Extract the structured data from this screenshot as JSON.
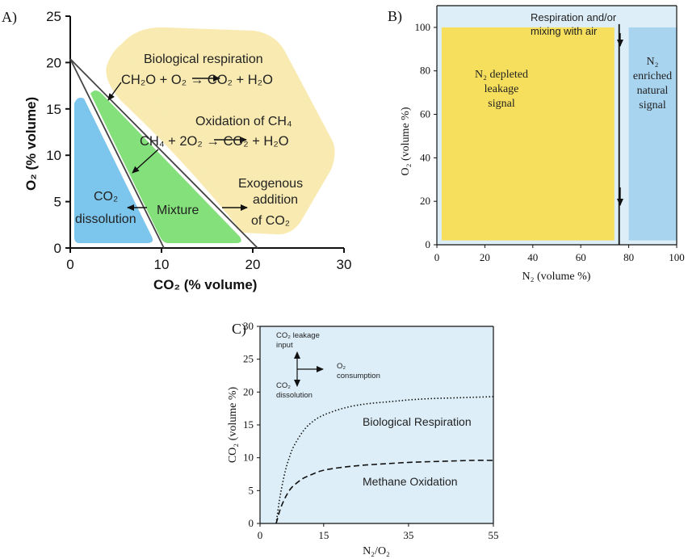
{
  "chart_data": [
    {
      "panel": "A)",
      "type": "ternary-region-diagram",
      "xlabel": "CO₂ (% volume)",
      "ylabel": "O₂ (% volume)",
      "xlim": [
        0,
        30
      ],
      "ylim": [
        0,
        25
      ],
      "xticks": [
        0,
        10,
        20,
        30
      ],
      "yticks": [
        0,
        5,
        10,
        15,
        20,
        25
      ],
      "lines": [
        {
          "from": [
            0,
            20.5
          ],
          "to": [
            20.5,
            0
          ]
        },
        {
          "from": [
            0,
            20.5
          ],
          "to": [
            10.2,
            0
          ]
        }
      ],
      "regions": [
        {
          "id": "respiration",
          "color": "#f8eab0",
          "labels": [
            "Biological respiration",
            "CH₂O + O₂ → CO₂ + H₂O",
            "Oxidation of CH₄",
            "CH₄ + 2O₂ → CO₂ + H₂O"
          ]
        },
        {
          "id": "dissolution",
          "color": "#7cc6ee",
          "labels": [
            "CO₂",
            "dissolution"
          ]
        },
        {
          "id": "mixture",
          "color": "#84e07a",
          "labels": [
            "Mixture"
          ]
        },
        {
          "id": "exogenous",
          "labels": [
            "Exogenous",
            "addition",
            "of CO₂"
          ]
        }
      ]
    },
    {
      "panel": "B)",
      "type": "region-diagram",
      "xlabel": "N₂ (volume %)",
      "ylabel": "O₂ (volume %)",
      "xlim": [
        0,
        100
      ],
      "ylim": [
        0,
        110
      ],
      "xticks": [
        0,
        20,
        40,
        60,
        80,
        100
      ],
      "yticks": [
        0,
        20,
        40,
        60,
        80,
        100
      ],
      "regions": [
        {
          "id": "depleted",
          "x": [
            2,
            74
          ],
          "y": [
            2,
            100
          ],
          "color": "#f5df5c",
          "label": [
            "N₂ depleted",
            "leakage",
            "signal"
          ]
        },
        {
          "id": "enriched",
          "x": [
            80,
            100
          ],
          "y": [
            2,
            100
          ],
          "color": "#a8d4ef",
          "label": [
            "N₂",
            "enriched",
            "natural",
            "signal"
          ]
        }
      ],
      "marker_line": {
        "x": 76,
        "y": [
          0,
          100
        ]
      },
      "annotation": [
        "Respiration and/or",
        "mixing with air"
      ]
    },
    {
      "panel": "C)",
      "type": "line",
      "xlabel": "N₂/O₂",
      "ylabel": "CO₂ (volume %)",
      "xlim": [
        0,
        55
      ],
      "ylim": [
        0,
        30
      ],
      "xticks": [
        0,
        15,
        35,
        55
      ],
      "yticks": [
        0,
        5,
        10,
        15,
        20,
        25,
        30
      ],
      "series": [
        {
          "name": "Biological Respiration",
          "style": "dotted",
          "x": [
            3.8,
            4.5,
            5,
            6,
            7,
            8,
            10,
            12,
            15,
            20,
            25,
            30,
            35,
            40,
            45,
            50,
            55
          ],
          "y": [
            0,
            3.2,
            5.1,
            8.1,
            10.2,
            11.8,
            13.9,
            15.3,
            16.5,
            17.6,
            18.2,
            18.5,
            18.8,
            19.0,
            19.1,
            19.2,
            19.3
          ]
        },
        {
          "name": "Methane Oxidation",
          "style": "dashed",
          "x": [
            3.8,
            4.5,
            5,
            6,
            7,
            8,
            10,
            12,
            15,
            20,
            25,
            30,
            35,
            40,
            45,
            50,
            55
          ],
          "y": [
            0,
            1.6,
            2.6,
            4.0,
            5.1,
            5.8,
            6.8,
            7.4,
            8.1,
            8.6,
            8.9,
            9.1,
            9.3,
            9.4,
            9.5,
            9.6,
            9.6
          ]
        }
      ],
      "inset": {
        "up": [
          "CO₂ leakage",
          "input"
        ],
        "right": [
          "O₂",
          "consumption"
        ],
        "down": [
          "CO₂",
          "dissolution"
        ]
      }
    }
  ]
}
